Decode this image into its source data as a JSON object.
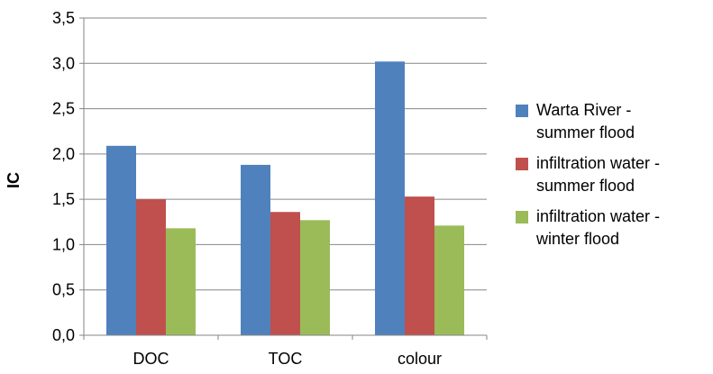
{
  "chart_data": {
    "type": "bar",
    "categories": [
      "DOC",
      "TOC",
      "colour"
    ],
    "series": [
      {
        "name": "Warta River - \nsummer flood",
        "color": "#4F81BD",
        "values": [
          2.09,
          1.88,
          3.02
        ]
      },
      {
        "name": "infiltration water - \nsummer flood",
        "color": "#C0504D",
        "values": [
          1.5,
          1.36,
          1.53
        ]
      },
      {
        "name": "infiltration water - \nwinter flood",
        "color": "#9BBB59",
        "values": [
          1.18,
          1.27,
          1.21
        ]
      }
    ],
    "title": "",
    "xlabel": "",
    "ylabel": "IC",
    "ylim": [
      0,
      3.5
    ],
    "yticks": [
      "0,0",
      "0,5",
      "1,0",
      "1,5",
      "2,0",
      "2,5",
      "3,0",
      "3,5"
    ],
    "ytick_values": [
      0,
      0.5,
      1.0,
      1.5,
      2.0,
      2.5,
      3.0,
      3.5
    ],
    "grid": "horizontal",
    "legend_position": "right",
    "gridline_color": "#868686",
    "axis_color": "#868686"
  }
}
